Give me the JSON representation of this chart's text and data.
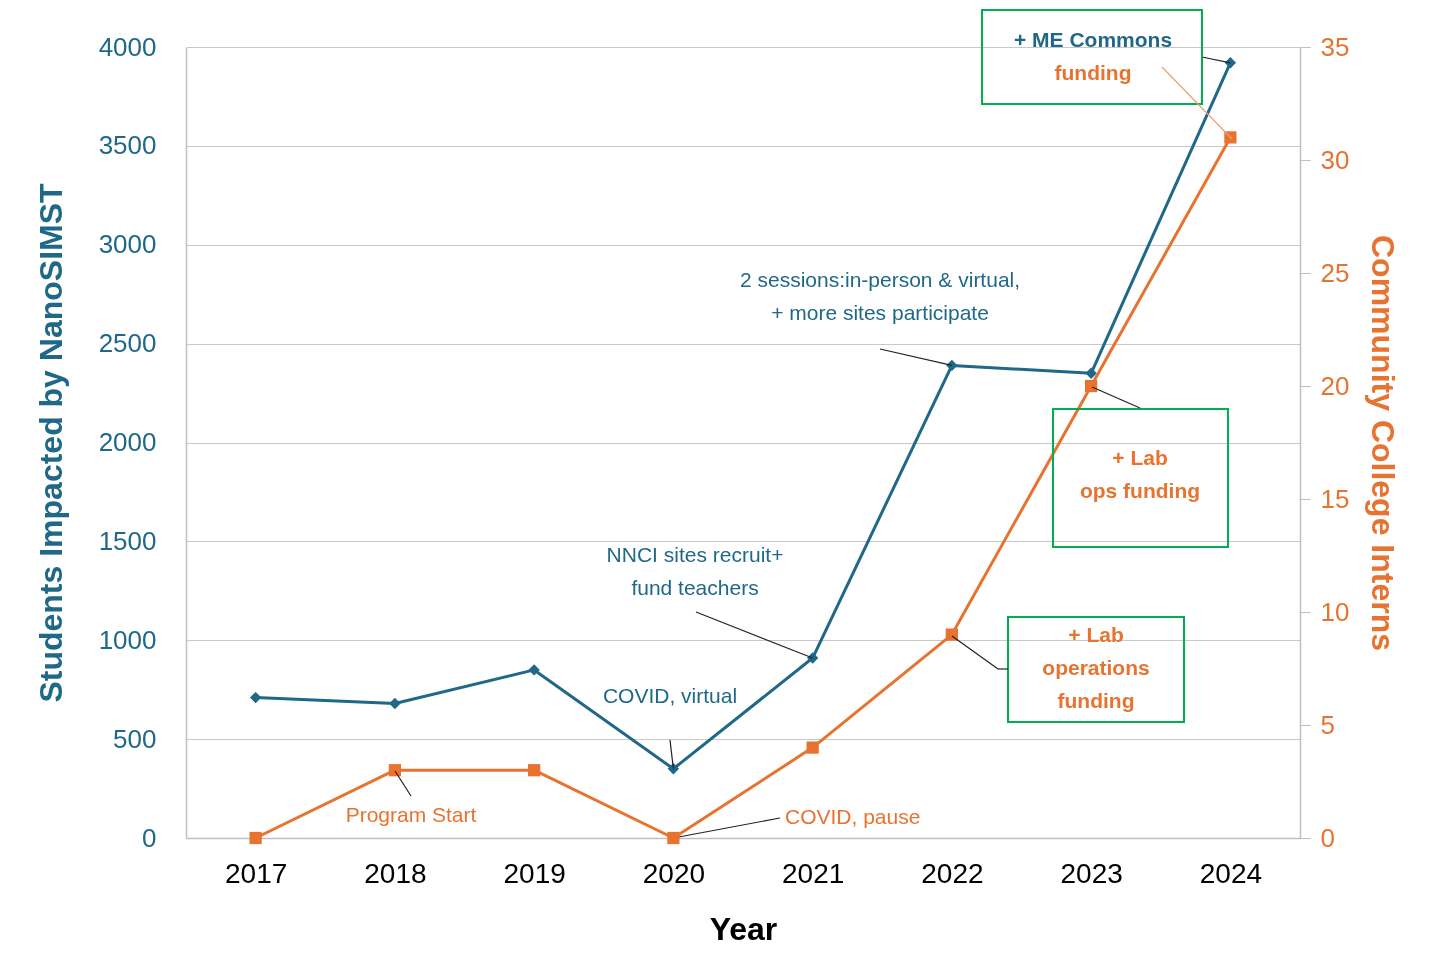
{
  "chart_data": {
    "type": "line",
    "xlabel": "Year",
    "ylabel": "Students Impacted by NanoSIMST",
    "y2label": "Community College Interns",
    "categories": [
      "2017",
      "2018",
      "2019",
      "2020",
      "2021",
      "2022",
      "2023",
      "2024"
    ],
    "series": [
      {
        "color": "#1f6888",
        "marker": "diamond",
        "values": [
          710,
          680,
          850,
          350,
          910,
          2390,
          2350,
          3920
        ]
      },
      {
        "color": "#e87330",
        "marker": "square",
        "axis": "y2",
        "values": [
          0,
          3,
          3,
          0,
          4,
          9,
          20,
          31
        ]
      }
    ],
    "ylim": [
      0,
      4000
    ],
    "yticks": [
      0,
      500,
      1000,
      1500,
      2000,
      2500,
      3000,
      3500,
      4000
    ],
    "y2lim": [
      0,
      35
    ],
    "y2ticks": [
      0,
      5,
      10,
      15,
      20,
      25,
      30,
      35
    ],
    "grid": "y",
    "line_style": "solid",
    "annotations": [
      "Program Start",
      {
        "text": "COVID, pause",
        "x": "2020",
        "y": 0
      },
      {
        "text": "COVID, virtual",
        "x": "2020",
        "y": 350
      },
      {
        "text": "NNCI sites recruit+\nfund teachers",
        "x": "2021",
        "y": 910
      },
      {
        "text": "2 sessions:in-person & virtual,\n+ more sites participate",
        "x": "2022",
        "y": 2390
      },
      {
        "text": "+ ME Commons",
        "x": "2024",
        "y": 3920
      },
      "funding",
      "+ Lab\nops funding",
      "+ Lab\noperations\nfunding"
    ]
  }
}
